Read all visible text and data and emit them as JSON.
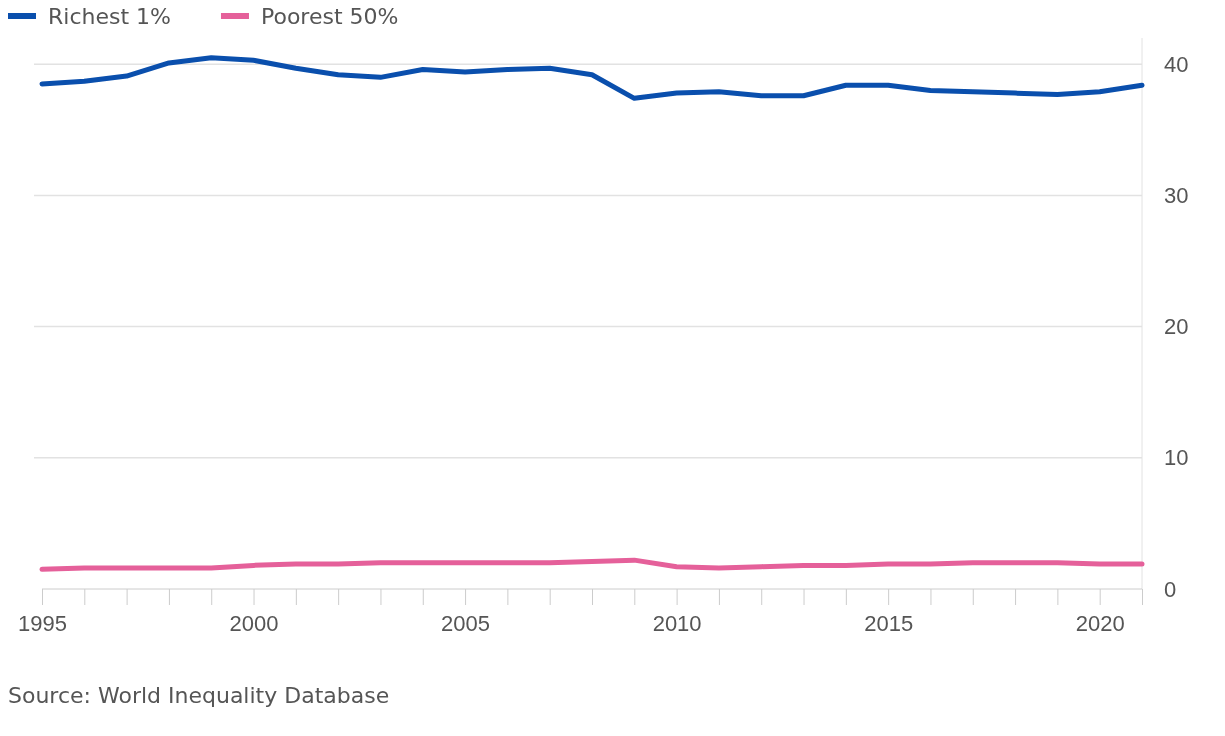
{
  "chart_data": {
    "type": "line",
    "x": [
      1995,
      1996,
      1997,
      1998,
      1999,
      2000,
      2001,
      2002,
      2003,
      2004,
      2005,
      2006,
      2007,
      2008,
      2009,
      2010,
      2011,
      2012,
      2013,
      2014,
      2015,
      2016,
      2017,
      2018,
      2019,
      2020,
      2021
    ],
    "series": [
      {
        "name": "Richest 1%",
        "color": "#0a4fad",
        "values": [
          38.5,
          38.7,
          39.1,
          40.1,
          40.5,
          40.3,
          39.7,
          39.2,
          39.0,
          39.6,
          39.4,
          39.6,
          39.7,
          39.2,
          37.4,
          37.8,
          37.9,
          37.6,
          37.6,
          38.4,
          38.4,
          38.0,
          37.9,
          37.8,
          37.7,
          37.9,
          38.4
        ]
      },
      {
        "name": "Poorest 50%",
        "color": "#e5609a",
        "values": [
          1.5,
          1.6,
          1.6,
          1.6,
          1.6,
          1.8,
          1.9,
          1.9,
          2.0,
          2.0,
          2.0,
          2.0,
          2.0,
          2.1,
          2.2,
          1.7,
          1.6,
          1.7,
          1.8,
          1.8,
          1.9,
          1.9,
          2.0,
          2.0,
          2.0,
          1.9,
          1.9
        ]
      }
    ],
    "xlim": [
      1995,
      2021
    ],
    "xticks": [
      1995,
      {
        "value": 1996,
        "label": null
      },
      {
        "value": 1997,
        "label": null
      },
      {
        "value": 1998,
        "label": null
      },
      {
        "value": 1999,
        "label": null
      },
      2000,
      {
        "value": 2001,
        "label": null
      },
      {
        "value": 2002,
        "label": null
      },
      {
        "value": 2003,
        "label": null
      },
      {
        "value": 2004,
        "label": null
      },
      2005,
      {
        "value": 2006,
        "label": null
      },
      {
        "value": 2007,
        "label": null
      },
      {
        "value": 2008,
        "label": null
      },
      {
        "value": 2009,
        "label": null
      },
      2010,
      {
        "value": 2011,
        "label": null
      },
      {
        "value": 2012,
        "label": null
      },
      {
        "value": 2013,
        "label": null
      },
      {
        "value": 2014,
        "label": null
      },
      2015,
      {
        "value": 2016,
        "label": null
      },
      {
        "value": 2017,
        "label": null
      },
      {
        "value": 2018,
        "label": null
      },
      {
        "value": 2019,
        "label": null
      },
      2020,
      {
        "value": 2021,
        "label": null
      }
    ],
    "ylim": [
      0,
      42
    ],
    "yticks": [
      0,
      10,
      20,
      30,
      40
    ],
    "grid": "y",
    "legend": "top left",
    "marker": "none",
    "line_style": "solid",
    "annotations": [
      "Source: World Inequality Database"
    ]
  }
}
